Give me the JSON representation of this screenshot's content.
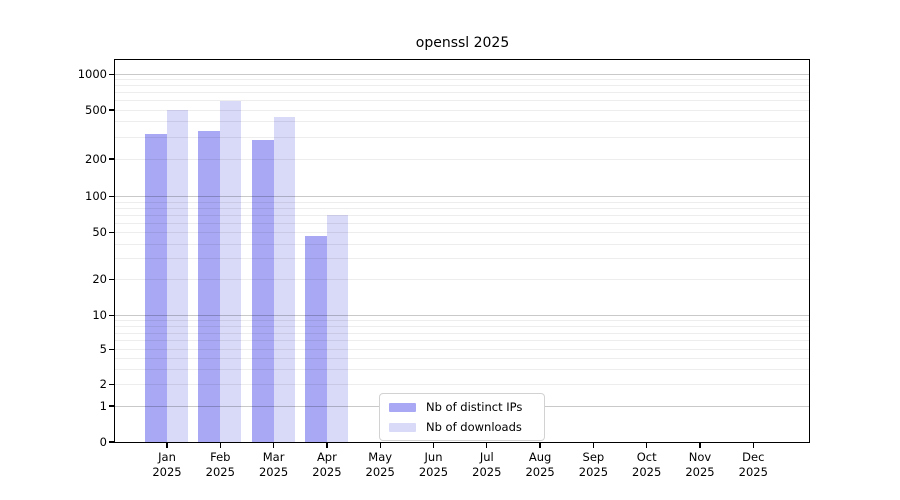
{
  "chart_data": {
    "type": "bar",
    "title": "openssl 2025",
    "categories": [
      {
        "month": "Jan",
        "year": "2025"
      },
      {
        "month": "Feb",
        "year": "2025"
      },
      {
        "month": "Mar",
        "year": "2025"
      },
      {
        "month": "Apr",
        "year": "2025"
      },
      {
        "month": "May",
        "year": "2025"
      },
      {
        "month": "Jun",
        "year": "2025"
      },
      {
        "month": "Jul",
        "year": "2025"
      },
      {
        "month": "Aug",
        "year": "2025"
      },
      {
        "month": "Sep",
        "year": "2025"
      },
      {
        "month": "Oct",
        "year": "2025"
      },
      {
        "month": "Nov",
        "year": "2025"
      },
      {
        "month": "Dec",
        "year": "2025"
      }
    ],
    "series": [
      {
        "name": "Nb of distinct IPs",
        "color": "#a8a8f5",
        "values": [
          320,
          335,
          285,
          47,
          0,
          0,
          0,
          0,
          0,
          0,
          0,
          0
        ]
      },
      {
        "name": "Nb of downloads",
        "color": "#d9d9f8",
        "values": [
          505,
          600,
          440,
          70,
          0,
          0,
          0,
          0,
          0,
          0,
          0,
          0
        ]
      }
    ],
    "y_ticks": [
      0,
      1,
      2,
      5,
      10,
      20,
      50,
      100,
      200,
      500,
      1000
    ],
    "y_scale": "log (compressed linear segment below 1, bottom = 0)",
    "ylim": [
      0,
      1300
    ],
    "xlabel": "",
    "ylabel": "",
    "grid": "horizontal major + minor",
    "legend_position": "inside lower-center"
  }
}
